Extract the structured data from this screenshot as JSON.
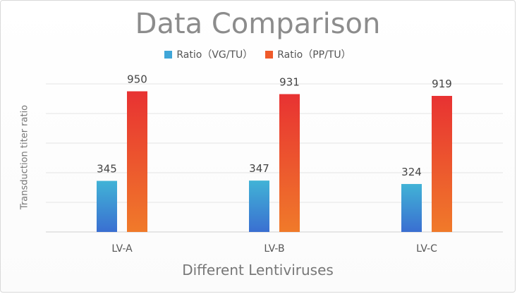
{
  "chart_data": {
    "type": "bar",
    "title": "Data Comparison",
    "xlabel": "Different Lentiviruses",
    "ylabel": "Transduction titer ratio",
    "categories": [
      "LV-A",
      "LV-B",
      "LV-C"
    ],
    "series": [
      {
        "name": "Ratio（VG/TU）",
        "values": [
          345,
          347,
          324
        ],
        "labels": [
          "345",
          "347",
          "324"
        ],
        "color_top": "#41b3d6",
        "color_bottom": "#3a6fd1"
      },
      {
        "name": "Ratio（PP/TU）",
        "values": [
          950,
          931,
          919
        ],
        "labels": [
          "950",
          "931",
          "919"
        ],
        "color_top": "#e83232",
        "color_bottom": "#f07a2a"
      }
    ],
    "ylim": [
      0,
      1000
    ],
    "grid": true,
    "legend_position": "top-center"
  }
}
